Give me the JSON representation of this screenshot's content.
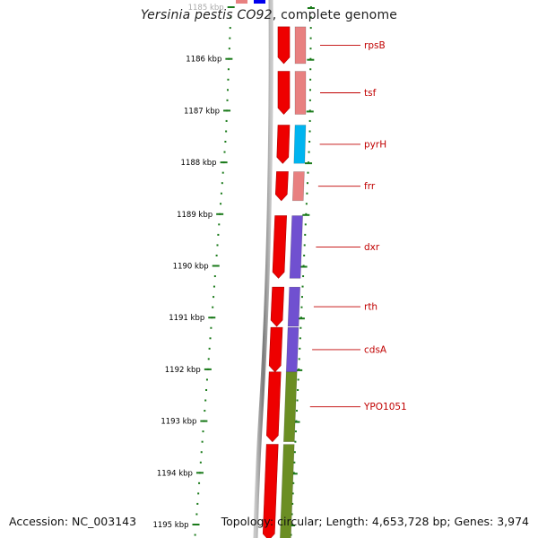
{
  "title": {
    "organism": "Yersinia pestis CO92",
    "rest": ", complete genome"
  },
  "footer": {
    "accession": "Accession: NC_003143",
    "summary": "Topology: circular; Length: 4,653,728 bp; Genes: 3,974"
  },
  "colors": {
    "backbone": "#8c8c8c",
    "cds": "#ee0000",
    "tick": "#1a7a1a",
    "label": "#c00000",
    "cog_light_red": "#e88080",
    "cog_cyan": "#00b4ef",
    "cog_purple": "#7050d0",
    "cog_olive": "#6b8e23",
    "blue": "#0000ee"
  },
  "ticks": [
    {
      "label": "1185 kbp",
      "kbp": 1185,
      "faded": true
    },
    {
      "label": "1186 kbp",
      "kbp": 1186
    },
    {
      "label": "1187 kbp",
      "kbp": 1187
    },
    {
      "label": "1188 kbp",
      "kbp": 1188
    },
    {
      "label": "1189 kbp",
      "kbp": 1189
    },
    {
      "label": "1190 kbp",
      "kbp": 1190
    },
    {
      "label": "1191 kbp",
      "kbp": 1191
    },
    {
      "label": "1192 kbp",
      "kbp": 1192
    },
    {
      "label": "1193 kbp",
      "kbp": 1193
    },
    {
      "label": "1194 kbp",
      "kbp": 1194
    },
    {
      "label": "1195 kbp",
      "kbp": 1195
    }
  ],
  "genes": [
    {
      "name": "rpsB",
      "start_kbp": 1185.38,
      "end_kbp": 1186.09,
      "cog_color": "#e88080",
      "labeled": true
    },
    {
      "name": "tsf",
      "start_kbp": 1186.24,
      "end_kbp": 1187.07,
      "cog_color": "#e88080",
      "labeled": true
    },
    {
      "name": "pyrH",
      "start_kbp": 1187.28,
      "end_kbp": 1188.02,
      "cog_color": "#00b4ef",
      "labeled": true
    },
    {
      "name": "frr",
      "start_kbp": 1188.18,
      "end_kbp": 1188.74,
      "cog_color": "#e88080",
      "labeled": true
    },
    {
      "name": "dxr",
      "start_kbp": 1189.03,
      "end_kbp": 1190.24,
      "cog_color": "#7050d0",
      "labeled": true
    },
    {
      "name": "rth",
      "start_kbp": 1190.41,
      "end_kbp": 1191.17,
      "cog_color": "#7050d0",
      "labeled": true
    },
    {
      "name": "cdsA",
      "start_kbp": 1191.19,
      "end_kbp": 1192.05,
      "cog_color": "#7050d0",
      "labeled": true
    },
    {
      "name": "YPO1051",
      "start_kbp": 1192.05,
      "end_kbp": 1193.4,
      "cog_color": "#6b8e23",
      "labeled": true
    },
    {
      "name": "",
      "start_kbp": 1193.45,
      "end_kbp": 1195.3,
      "cog_color": "#6b8e23",
      "labeled": false
    }
  ],
  "partial_top": {
    "left_color": "#e88080",
    "right_color": "#0000ee"
  }
}
